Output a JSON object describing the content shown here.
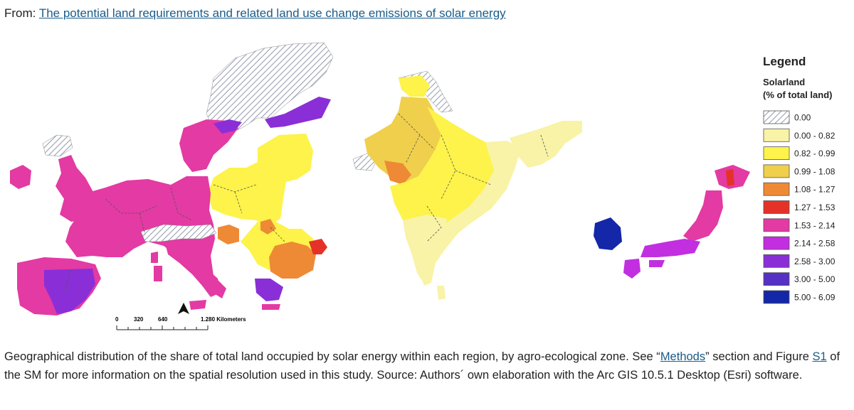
{
  "header": {
    "prefix": "From:",
    "link_text": "The potential land requirements and related land use change emissions of solar energy"
  },
  "legend": {
    "title": "Legend",
    "subtitle_line1": "Solarland",
    "subtitle_line2": "(% of total land)",
    "items": [
      {
        "label": "0.00",
        "color": "hatch"
      },
      {
        "label": "0.00 - 0.82",
        "color": "#f8f3a6"
      },
      {
        "label": "0.82 - 0.99",
        "color": "#fdf34a"
      },
      {
        "label": "0.99 - 1.08",
        "color": "#f0cf4c"
      },
      {
        "label": "1.08 - 1.27",
        "color": "#ee8a35"
      },
      {
        "label": "1.27 - 1.53",
        "color": "#e53228"
      },
      {
        "label": "1.53 - 2.14",
        "color": "#e33aa3"
      },
      {
        "label": "2.14 - 2.58",
        "color": "#c22fe0"
      },
      {
        "label": "2.58 - 3.00",
        "color": "#8a2fd7"
      },
      {
        "label": "3.00 - 5.00",
        "color": "#5531c6"
      },
      {
        "label": "5.00 - 6.09",
        "color": "#1427a8"
      }
    ]
  },
  "scale_bar": {
    "ticks": [
      "0",
      "320",
      "640",
      "1.280 Kilometers"
    ]
  },
  "caption": {
    "part1": "Geographical distribution of the share of total land occupied by solar energy within each region, by agro-ecological zone. See “",
    "methods_link": "Methods",
    "part2": "” section and Figure ",
    "s1_link": "S1",
    "part3": " of the SM for more information on the spatial resolution used in this study. Source: Authors´ own elaboration with the Arc GIS 10.5.1 Desktop (Esri) software."
  }
}
